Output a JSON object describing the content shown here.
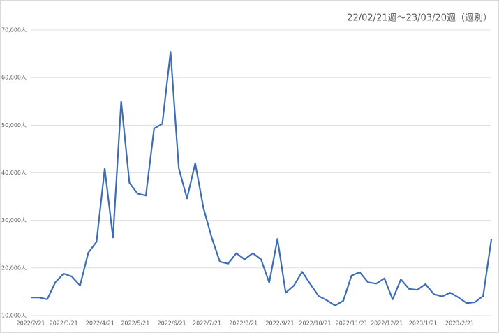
{
  "chart_data": {
    "type": "line",
    "title": "22/02/21週〜23/03/20週（週別）",
    "x": [
      "2022/2/21",
      "2022/2/28",
      "2022/3/7",
      "2022/3/14",
      "2022/3/21",
      "2022/3/28",
      "2022/4/4",
      "2022/4/11",
      "2022/4/18",
      "2022/4/25",
      "2022/5/2",
      "2022/5/9",
      "2022/5/16",
      "2022/5/23",
      "2022/5/30",
      "2022/6/6",
      "2022/6/13",
      "2022/6/20",
      "2022/6/27",
      "2022/7/4",
      "2022/7/11",
      "2022/7/18",
      "2022/7/25",
      "2022/8/1",
      "2022/8/8",
      "2022/8/15",
      "2022/8/22",
      "2022/8/29",
      "2022/9/5",
      "2022/9/12",
      "2022/9/19",
      "2022/9/26",
      "2022/10/3",
      "2022/10/10",
      "2022/10/17",
      "2022/10/24",
      "2022/10/31",
      "2022/11/7",
      "2022/11/14",
      "2022/11/21",
      "2022/11/28",
      "2022/12/5",
      "2022/12/12",
      "2022/12/19",
      "2022/12/26",
      "2023/1/2",
      "2023/1/9",
      "2023/1/16",
      "2023/1/23",
      "2023/1/30",
      "2023/2/6",
      "2023/2/13",
      "2023/2/20",
      "2023/2/27",
      "2023/3/6",
      "2023/3/13",
      "2023/3/20"
    ],
    "values": [
      13800,
      13800,
      13400,
      17000,
      18800,
      18200,
      16300,
      23200,
      25500,
      40900,
      26400,
      55000,
      37900,
      35600,
      35200,
      49300,
      50300,
      65400,
      41000,
      34600,
      42000,
      32600,
      26400,
      21300,
      20900,
      23100,
      21800,
      23100,
      21800,
      16900,
      26100,
      14800,
      16300,
      19200,
      16600,
      14100,
      13200,
      12100,
      13100,
      18400,
      19100,
      17000,
      16700,
      17800,
      13400,
      17600,
      15600,
      15400,
      16600,
      14500,
      14000,
      14800,
      13800,
      12600,
      12800,
      14100,
      26000
    ],
    "color": "#3d6db5",
    "xlim": [
      "2022/2/21",
      "2023/3/20"
    ],
    "xticks": [
      "2022/2/21",
      "2022/3/21",
      "2022/4/21",
      "2022/5/21",
      "2022/6/21",
      "2022/7/21",
      "2022/8/21",
      "2022/9/21",
      "2022/10/21",
      "2022/11/21",
      "2022/12/21",
      "2023/1/21",
      "2023/2/21"
    ],
    "ylim": [
      10000,
      70000
    ],
    "yticks": [
      {
        "value": 10000,
        "label": "10,000人"
      },
      {
        "value": 20000,
        "label": "20,000人"
      },
      {
        "value": 30000,
        "label": "30,000人"
      },
      {
        "value": 40000,
        "label": "40,000人"
      },
      {
        "value": 50000,
        "label": "50,000人"
      },
      {
        "value": 60000,
        "label": "60,000人"
      },
      {
        "value": 70000,
        "label": "70,000人"
      }
    ],
    "grid": true
  }
}
